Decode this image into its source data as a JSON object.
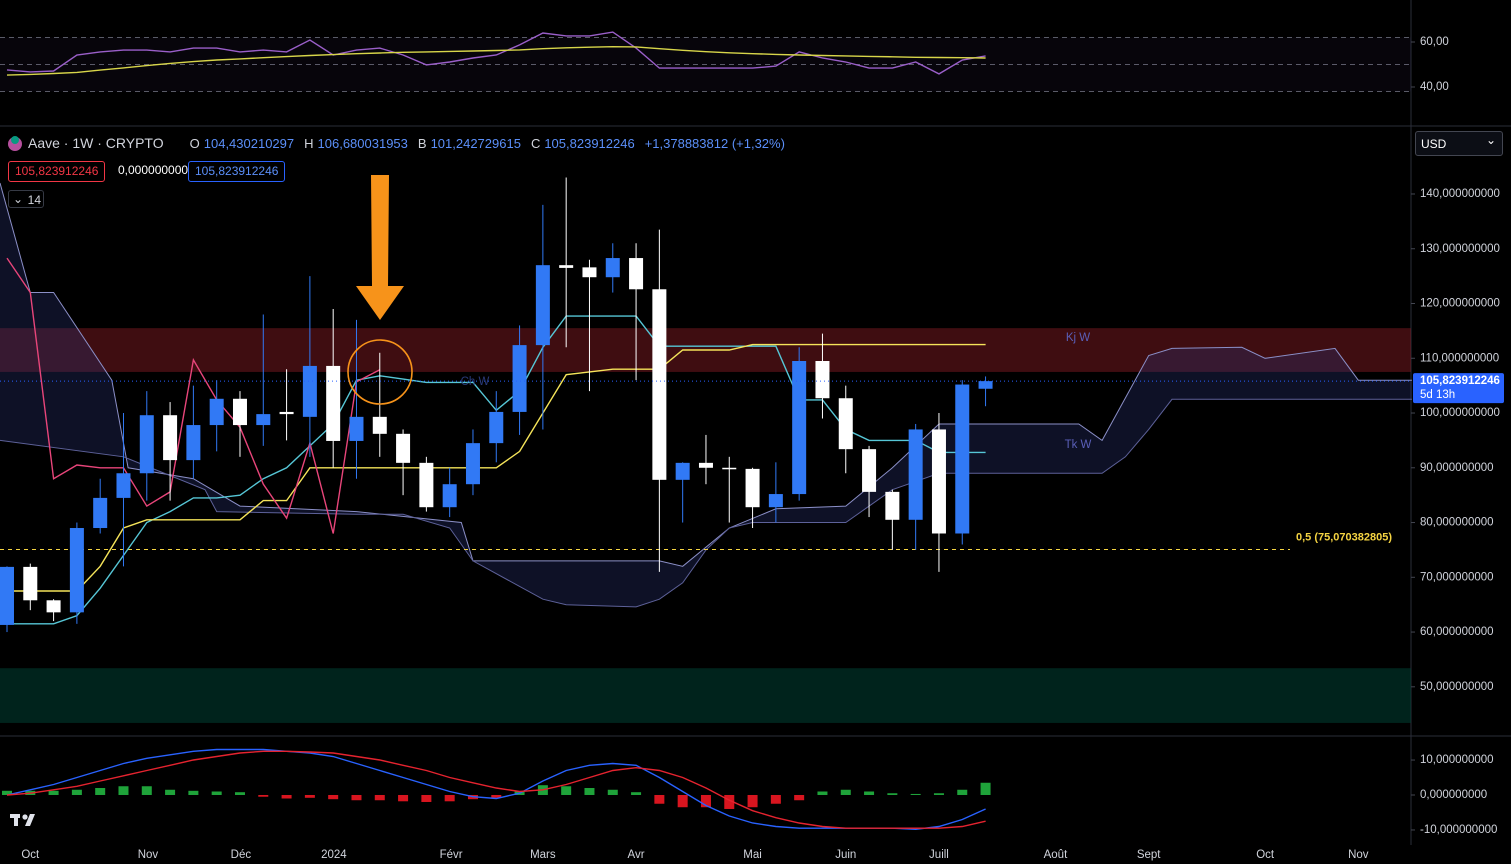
{
  "header": {
    "symbol": "Aave · 1W · CRYPTO",
    "o_label": "O",
    "open": "104,430210297",
    "h_label": "H",
    "high": "106,680031953",
    "l_label": "B",
    "low": "101,242729615",
    "c_label": "C",
    "close": "105,823912246",
    "change": "+1,378883812 (+1,32%)",
    "badges": [
      "105,823912246",
      "0,000000000",
      "105,823912246"
    ],
    "interval_count": "14",
    "currency": "USD"
  },
  "chart_data": [
    {
      "type": "line",
      "x": [
        0,
        1,
        2,
        3,
        4,
        5,
        6,
        7,
        8,
        9,
        10,
        11,
        12,
        13,
        14,
        15,
        16,
        17,
        18,
        19,
        20,
        21,
        22,
        23,
        24,
        25,
        26,
        27,
        28,
        29,
        30,
        31,
        32,
        33,
        34,
        35,
        36,
        37,
        38,
        39,
        40,
        41,
        42
      ],
      "xlim": [
        -0.3,
        60.26
      ],
      "ylim": [
        23.1,
        78.67
      ],
      "yticks": [
        {
          "value": 40,
          "label": "40,00"
        },
        {
          "value": 60,
          "label": "60,00"
        }
      ],
      "bands": [
        62,
        50,
        38
      ],
      "band_color": "#787b86",
      "series": [
        {
          "color": "#9a5fc9",
          "values": [
            47.6,
            46.7,
            47.1,
            54.2,
            55.6,
            56.4,
            56.4,
            55.6,
            57.3,
            57.3,
            55.6,
            56.4,
            55.6,
            60.9,
            54.2,
            56.4,
            57.3,
            54.2,
            49.8,
            51.1,
            52.9,
            54.2,
            58.7,
            64,
            62.7,
            62.7,
            64.4,
            57.3,
            48.4,
            48.4,
            48.4,
            48.4,
            48.4,
            49.3,
            55.6,
            52.9,
            51.1,
            48.4,
            48.4,
            51.1,
            45.8,
            52,
            53.8
          ]
        },
        {
          "color": "#d8d64a",
          "values": [
            45.3,
            45.6,
            46,
            46.5,
            47.5,
            48.5,
            49.5,
            50.5,
            51.3,
            52,
            52.5,
            53,
            53.5,
            54,
            54.4,
            54.8,
            55.1,
            55.4,
            55.6,
            55.8,
            56,
            56.2,
            56.5,
            57,
            57.4,
            57.7,
            57.9,
            57.8,
            57,
            56.3,
            55.7,
            55.2,
            54.8,
            54.5,
            54.2,
            54,
            53.8,
            53.6,
            53.4,
            53.2,
            53.1,
            53,
            52.9
          ]
        }
      ]
    },
    {
      "type": "candlestick",
      "x": [
        0,
        1,
        2,
        3,
        4,
        5,
        6,
        7,
        8,
        9,
        10,
        11,
        12,
        13,
        14,
        15,
        16,
        17,
        18,
        19,
        20,
        21,
        22,
        23,
        24,
        25,
        26,
        27,
        28,
        29,
        30,
        31,
        32,
        33,
        34,
        35,
        36,
        37,
        38,
        39,
        40,
        41,
        42
      ],
      "open": [
        61.3,
        71.9,
        65.8,
        63.6,
        79,
        84.5,
        89,
        99.6,
        91.4,
        97.8,
        102.6,
        97.8,
        100.2,
        99.3,
        108.6,
        94.9,
        99.3,
        96.2,
        90.9,
        82.8,
        87,
        94.5,
        100.2,
        112.4,
        127,
        126.6,
        124.8,
        128.3,
        122.6,
        87.8,
        90.9,
        90,
        89.8,
        82.8,
        85.2,
        109.5,
        102.7,
        93.4,
        85.6,
        80.5,
        97,
        78,
        104.430210297
      ],
      "high": [
        72,
        72.5,
        66,
        80,
        88,
        100,
        104,
        102,
        105,
        106,
        104,
        118,
        108,
        125,
        119,
        117,
        111,
        97,
        92,
        90,
        97,
        104,
        116,
        138,
        143,
        128,
        131,
        131,
        133.5,
        91,
        96,
        92,
        90,
        91,
        112,
        114.5,
        105,
        94,
        86,
        98,
        100,
        106,
        106.680031953
      ],
      "low": [
        60,
        64,
        62,
        61.5,
        78,
        72,
        84,
        84,
        88,
        93,
        92,
        94,
        95,
        92,
        90,
        88,
        92,
        85,
        82,
        81,
        85,
        91,
        96,
        97,
        112,
        104,
        122,
        106,
        71,
        80,
        87,
        80,
        79,
        80,
        84,
        99,
        89,
        81,
        75,
        75,
        71,
        76,
        101.242729615
      ],
      "close": [
        71.9,
        65.8,
        63.6,
        79,
        84.5,
        89,
        99.6,
        91.4,
        97.8,
        102.6,
        97.8,
        99.8,
        99.8,
        108.6,
        94.9,
        99.3,
        96.2,
        90.9,
        82.8,
        87,
        94.5,
        100.2,
        112.4,
        127,
        126.5,
        124.8,
        128.3,
        122.6,
        87.8,
        90.9,
        90,
        89.8,
        82.8,
        85.2,
        109.5,
        102.7,
        93.4,
        85.6,
        80.5,
        97,
        78,
        105.2,
        105.823912246
      ],
      "up_color": "#3179f5",
      "down_color": "#ffffff",
      "xlim": [
        -0.3,
        60.26
      ],
      "ylim": [
        41.2,
        152.05
      ],
      "yticks": [
        {
          "value": 50,
          "label": "50,000000000"
        },
        {
          "value": 60,
          "label": "60,000000000"
        },
        {
          "value": 70,
          "label": "70,000000000"
        },
        {
          "value": 80,
          "label": "80,000000000"
        },
        {
          "value": 90,
          "label": "90,000000000"
        },
        {
          "value": 100,
          "label": "100,000000000"
        },
        {
          "value": 110,
          "label": "110,000000000"
        },
        {
          "value": 120,
          "label": "120,000000000"
        },
        {
          "value": 130,
          "label": "130,000000000"
        },
        {
          "value": 140,
          "label": "140,000000000"
        }
      ],
      "xticks": [
        {
          "value": 1,
          "label": "Oct"
        },
        {
          "value": 6.05,
          "label": "Nov"
        },
        {
          "value": 10.04,
          "label": "Déc"
        },
        {
          "value": 14.03,
          "label": "2024"
        },
        {
          "value": 19.06,
          "label": "Févr"
        },
        {
          "value": 23,
          "label": "Mars"
        },
        {
          "value": 27,
          "label": "Avr"
        },
        {
          "value": 32,
          "label": "Mai"
        },
        {
          "value": 36,
          "label": "Juin"
        },
        {
          "value": 40,
          "label": "Juill"
        },
        {
          "value": 45,
          "label": "Août"
        },
        {
          "value": 49,
          "label": "Sept"
        },
        {
          "value": 54,
          "label": "Oct"
        },
        {
          "value": 58,
          "label": "Nov"
        }
      ],
      "zones": [
        {
          "from": 107.5,
          "to": 115.5,
          "color": "rgba(150,30,40,0.42)"
        },
        {
          "from": 43.4,
          "to": 53.4,
          "color": "rgba(0,70,55,0.5)"
        }
      ],
      "cloud": {
        "color": "rgba(40,50,110,0.35)",
        "span_a": {
          "color": "#8b8fc7",
          "x": [
            -0.3,
            1,
            2,
            4.5,
            5.2,
            8,
            10,
            15,
            19.5,
            20,
            28,
            29,
            31,
            33,
            36,
            38,
            40,
            46,
            47,
            49,
            50,
            53,
            54,
            57,
            58,
            60.3
          ],
          "values": [
            142,
            122,
            122,
            106,
            90,
            88,
            83,
            82,
            80,
            73,
            73,
            72,
            79,
            82.5,
            83,
            90,
            98,
            98,
            95,
            110.5,
            111.8,
            112,
            110,
            111.8,
            106,
            106
          ]
        },
        "span_b": {
          "color": "#5d6199",
          "x": [
            -0.3,
            5,
            8.5,
            9,
            15,
            17,
            19,
            20,
            23,
            24,
            27,
            28,
            29,
            30,
            31,
            32,
            36,
            38,
            40,
            46,
            47,
            48,
            49,
            50,
            58,
            60.3
          ],
          "values": [
            95,
            92,
            86,
            82,
            81.5,
            81.5,
            79,
            73,
            66,
            65,
            64.6,
            66,
            69,
            75,
            79,
            80,
            80,
            86,
            89,
            89,
            89,
            92,
            97,
            102.5,
            102.5,
            102.5
          ]
        }
      },
      "series": [
        {
          "color": "#56c6d6",
          "values": [
            61.5,
            61.5,
            61.5,
            63,
            68,
            74,
            80,
            82,
            84.5,
            84.5,
            85,
            88,
            90,
            94,
            98,
            106,
            106.8,
            106.2,
            105.6,
            105.6,
            105.6,
            100.5,
            104,
            112,
            117.7,
            117.7,
            117.7,
            117.7,
            112.2,
            112.2,
            112.2,
            112.2,
            112.2,
            112.2,
            102.4,
            102.4,
            97,
            95,
            95,
            95,
            92.8,
            92.8,
            92.8
          ]
        },
        {
          "color": "#f5e45a",
          "values": [
            67.5,
            67.5,
            67.5,
            67.5,
            72,
            79,
            80.5,
            80.5,
            80.5,
            80.5,
            80.5,
            84,
            84,
            90,
            90,
            90,
            90,
            90,
            90,
            90,
            90,
            90,
            93,
            100,
            107,
            107.5,
            108,
            108,
            108,
            111.5,
            111.5,
            111.5,
            112.5,
            112.5,
            112.5,
            112.5,
            112.5,
            112.5,
            112.5,
            112.5,
            112.5,
            112.5,
            112.5
          ]
        },
        {
          "color": "#e8457a",
          "x": [
            0,
            1,
            2,
            3,
            4,
            5,
            6,
            7,
            8,
            9,
            10,
            11,
            12,
            13,
            14,
            15,
            16
          ],
          "values": [
            128.3,
            122,
            88,
            90.5,
            90,
            90,
            83,
            85.6,
            109.7,
            102.4,
            97.4,
            87,
            80.8,
            94.5,
            78,
            105.7,
            107.9
          ]
        }
      ],
      "fib": {
        "value": 75.070382805,
        "label": "0,5 (75,070382805)",
        "color": "#f5d442"
      },
      "last_price": {
        "value": 105.823912246,
        "label": "105,823912246",
        "color": "#2962ff"
      },
      "countdown": "5d 13h",
      "annotations": [
        "Kj W",
        "Tk W",
        "Ch W"
      ]
    },
    {
      "type": "macd",
      "x": [
        0,
        1,
        2,
        3,
        4,
        5,
        6,
        7,
        8,
        9,
        10,
        11,
        12,
        13,
        14,
        15,
        16,
        17,
        18,
        19,
        20,
        21,
        22,
        23,
        24,
        25,
        26,
        27,
        28,
        29,
        30,
        31,
        32,
        33,
        34,
        35,
        36,
        37,
        38,
        39,
        40,
        41,
        42
      ],
      "xlim": [
        -0.3,
        60.26
      ],
      "ylim": [
        -14.3,
        16.3
      ],
      "yticks": [
        {
          "value": -10,
          "label": "-10,000000000"
        },
        {
          "value": 0,
          "label": "0,000000000"
        },
        {
          "value": 10,
          "label": "10,000000000"
        }
      ],
      "histogram": [
        1.2,
        1.2,
        1.2,
        1.5,
        2,
        2.5,
        2.5,
        1.5,
        1.2,
        1,
        0.8,
        -0.5,
        -1,
        -0.8,
        -1.2,
        -1.5,
        -1.5,
        -1.8,
        -2,
        -1.8,
        -1.2,
        -0.8,
        1,
        2.8,
        2.5,
        2,
        1.5,
        0.8,
        -2.5,
        -3.5,
        -3.5,
        -4,
        -3.5,
        -2.5,
        -1.5,
        1,
        1.5,
        1,
        0.5,
        0.3,
        0.5,
        1.5,
        3.5
      ],
      "hist_colors": {
        "positive": "#1fa33a",
        "negative": "#d8151f"
      },
      "series": [
        {
          "color": "#2962ff",
          "values": [
            0,
            1.5,
            3,
            5,
            7,
            9,
            10.5,
            11.5,
            12.5,
            13,
            13,
            13,
            12.5,
            12,
            11,
            9,
            7,
            5,
            3,
            1,
            -0.5,
            -1,
            0.5,
            4,
            7,
            8.5,
            9,
            8.5,
            5,
            1,
            -3,
            -6,
            -8,
            -9,
            -9.5,
            -9.5,
            -9.5,
            -9.5,
            -9.5,
            -9.8,
            -9,
            -7,
            -4
          ]
        },
        {
          "color": "#e5232f",
          "values": [
            0,
            0.5,
            1.5,
            2.5,
            4,
            5.5,
            7,
            8.5,
            10,
            11,
            12,
            12.5,
            12.5,
            12.3,
            12,
            11,
            10,
            8.5,
            7,
            5,
            3.5,
            2,
            1,
            1.5,
            3,
            5,
            7,
            7.8,
            7,
            5,
            2,
            -1.5,
            -4.5,
            -6.5,
            -8,
            -9,
            -9.5,
            -9.5,
            -9.5,
            -9.5,
            -9.5,
            -9,
            -7.5
          ]
        }
      ]
    }
  ]
}
